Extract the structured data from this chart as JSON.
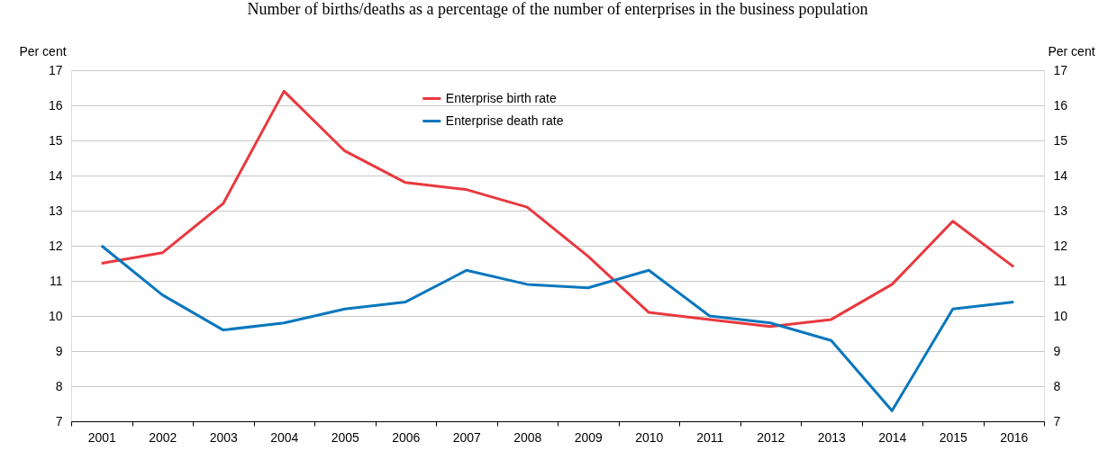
{
  "chart_data": {
    "type": "line",
    "subtitle": "Number of births/deaths as a percentage of the number of enterprises in the business population",
    "ylabel": "Per cent",
    "y2label": "Per cent",
    "categories": [
      "2001",
      "2002",
      "2003",
      "2004",
      "2005",
      "2006",
      "2007",
      "2008",
      "2009",
      "2010",
      "2011",
      "2012",
      "2013",
      "2014",
      "2015",
      "2016"
    ],
    "series": [
      {
        "name": "Enterprise birth rate",
        "color": "#e8393f",
        "values": [
          11.5,
          11.8,
          13.2,
          16.4,
          14.7,
          13.8,
          13.6,
          13.1,
          11.7,
          10.1,
          9.9,
          9.7,
          9.9,
          10.9,
          12.7,
          11.4
        ]
      },
      {
        "name": "Enterprise death rate",
        "color": "#0a77bd",
        "values": [
          12.0,
          10.6,
          9.6,
          9.8,
          10.2,
          10.4,
          11.3,
          10.9,
          10.8,
          11.3,
          10.0,
          9.8,
          9.3,
          7.3,
          10.2,
          10.4
        ]
      }
    ],
    "ylim": [
      7,
      17
    ],
    "yticks": [
      7,
      8,
      9,
      10,
      11,
      12,
      13,
      14,
      15,
      16,
      17
    ],
    "y2lim": [
      7,
      17
    ],
    "y2ticks": [
      7,
      8,
      9,
      10,
      11,
      12,
      13,
      14,
      15,
      16,
      17
    ],
    "grid": "y",
    "legend": "top",
    "marker": "none",
    "line_style": "solid"
  }
}
